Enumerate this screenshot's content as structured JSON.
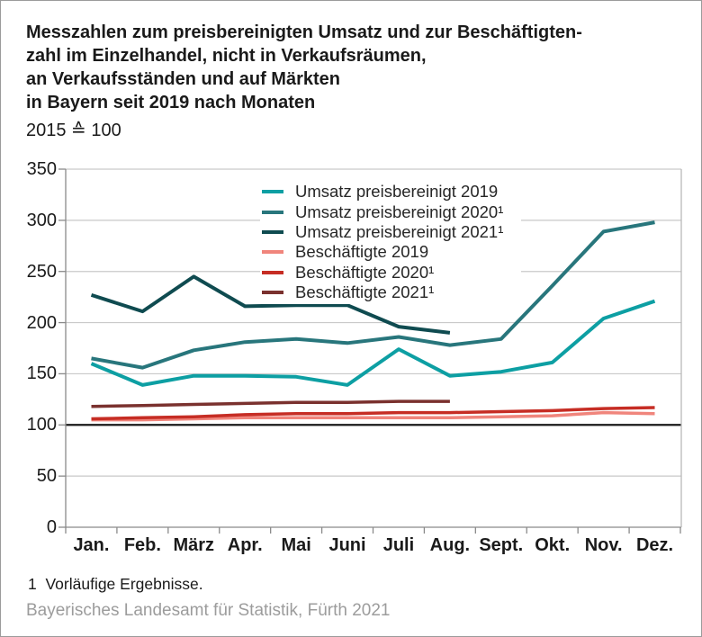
{
  "header": {
    "title": "Messzahlen zum preisbereinigten Umsatz und zur Beschäftigten-\nzahl im Einzelhandel, nicht in Verkaufsräumen,\nan Verkaufsständen und auf Märkten\nin Bayern seit 2019 nach Monaten",
    "subtitle": "2015 ≙ 100"
  },
  "footer": {
    "footnote": "1  Vorläufige Ergebnisse.",
    "source": "Bayerisches Landesamt für Statistik, Fürth 2021"
  },
  "colors": {
    "grid": "#c9c9c9",
    "axis": "#8a8a8a",
    "baseline": "#1a1a1a",
    "right_border": "#b5b5b5"
  },
  "chart_data": {
    "type": "line",
    "title": "Messzahlen zum preisbereinigten Umsatz und zur Beschäftigtenzahl im Einzelhandel, nicht in Verkaufsräumen, an Verkaufsständen und auf Märkten in Bayern seit 2019 nach Monaten",
    "subtitle": "2015 ≙ 100",
    "categories": [
      "Jan.",
      "Feb.",
      "März",
      "Apr.",
      "Mai",
      "Juni",
      "Juli",
      "Aug.",
      "Sept.",
      "Okt.",
      "Nov.",
      "Dez."
    ],
    "y_ticks": [
      0,
      50,
      100,
      150,
      200,
      250,
      300,
      350
    ],
    "ylim": [
      0,
      350
    ],
    "baseline": 100,
    "grid": true,
    "legend_position": "inside-top-center",
    "xlabel": "",
    "ylabel": "",
    "series": [
      {
        "name": "Umsatz preisbereinigt 2019",
        "color": "#0d9fa3",
        "width": 4,
        "values": [
          160,
          139,
          148,
          148,
          147,
          139,
          174,
          148,
          152,
          161,
          204,
          221
        ]
      },
      {
        "name": "Umsatz preisbereinigt 2020¹",
        "color": "#28767c",
        "width": 4,
        "values": [
          165,
          156,
          173,
          181,
          184,
          180,
          186,
          178,
          184,
          236,
          289,
          298
        ]
      },
      {
        "name": "Umsatz preisbereinigt 2021¹",
        "color": "#0f4b50",
        "width": 4,
        "values": [
          227,
          211,
          245,
          216,
          217,
          217,
          196,
          190
        ]
      },
      {
        "name": "Beschäftigte 2019",
        "color": "#f0857c",
        "width": 3.5,
        "values": [
          105,
          105,
          106,
          107,
          107,
          107,
          107,
          107,
          108,
          109,
          112,
          111
        ]
      },
      {
        "name": "Beschäftigte 2020¹",
        "color": "#c62d24",
        "width": 3.5,
        "values": [
          106,
          107,
          108,
          110,
          111,
          111,
          112,
          112,
          113,
          114,
          116,
          117
        ]
      },
      {
        "name": "Beschäftigte 2021¹",
        "color": "#7a312e",
        "width": 3.5,
        "values": [
          118,
          119,
          120,
          121,
          122,
          122,
          123,
          123
        ]
      }
    ]
  }
}
